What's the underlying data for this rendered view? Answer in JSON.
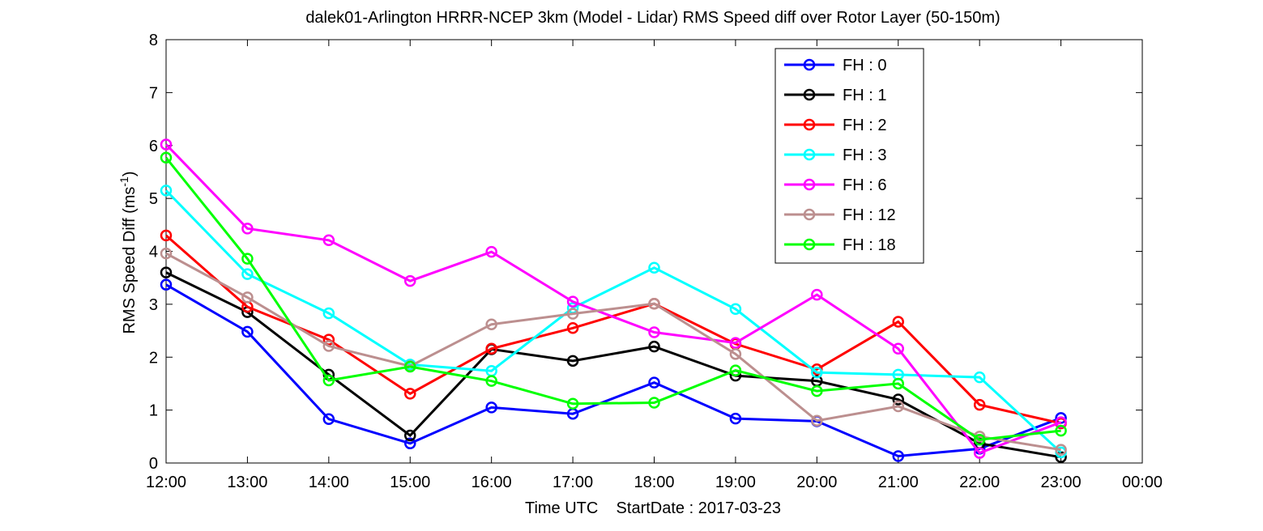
{
  "chart_data": {
    "type": "line",
    "title": "dalek01-Arlington HRRR-NCEP 3km (Model - Lidar) RMS Speed diff over Rotor Layer (50-150m)",
    "xlabel": "Time UTC    StartDate : 2017-03-23",
    "ylabel": "RMS Speed Diff (ms⁻¹)",
    "ylabel_main": "RMS Speed Diff (ms",
    "ylabel_sup": "-1",
    "ylabel_close": ")",
    "x_tick_labels": [
      "12:00",
      "13:00",
      "14:00",
      "15:00",
      "16:00",
      "17:00",
      "18:00",
      "19:00",
      "20:00",
      "21:00",
      "22:00",
      "23:00",
      "00:00"
    ],
    "y_tick_labels": [
      "0",
      "1",
      "2",
      "3",
      "4",
      "5",
      "6",
      "7",
      "8"
    ],
    "xlim": [
      "12:00",
      "00:00"
    ],
    "ylim": [
      0,
      8
    ],
    "grid": false,
    "legend_position": "top-right",
    "x": [
      "12:00",
      "13:00",
      "14:00",
      "15:00",
      "16:00",
      "17:00",
      "18:00",
      "19:00",
      "20:00",
      "21:00",
      "22:00",
      "23:00"
    ],
    "series": [
      {
        "name": "FH : 0",
        "color": "#0000ff",
        "values": [
          3.37,
          2.48,
          0.83,
          0.37,
          1.05,
          0.93,
          1.52,
          0.84,
          0.79,
          0.13,
          0.27,
          0.85
        ]
      },
      {
        "name": "FH : 1",
        "color": "#000000",
        "values": [
          3.6,
          2.85,
          1.67,
          0.52,
          2.15,
          1.93,
          2.2,
          1.65,
          1.55,
          1.2,
          0.37,
          0.11
        ]
      },
      {
        "name": "FH : 2",
        "color": "#ff0000",
        "values": [
          4.3,
          2.95,
          2.33,
          1.31,
          2.16,
          2.55,
          3.01,
          2.25,
          1.77,
          2.67,
          1.1,
          0.75
        ]
      },
      {
        "name": "FH : 3",
        "color": "#00ffff",
        "values": [
          5.15,
          3.57,
          2.83,
          1.86,
          1.74,
          2.93,
          3.69,
          2.91,
          1.71,
          1.67,
          1.62,
          0.2
        ]
      },
      {
        "name": "FH : 6",
        "color": "#ff00ff",
        "values": [
          6.02,
          4.43,
          4.21,
          3.44,
          3.99,
          3.05,
          2.47,
          2.27,
          3.18,
          2.16,
          0.19,
          0.77
        ]
      },
      {
        "name": "FH : 12",
        "color": "#bc8f8f",
        "values": [
          3.96,
          3.13,
          2.21,
          1.83,
          2.62,
          2.82,
          3.01,
          2.06,
          0.8,
          1.07,
          0.5,
          0.25
        ]
      },
      {
        "name": "FH : 18",
        "color": "#00ff00",
        "values": [
          5.77,
          3.86,
          1.56,
          1.82,
          1.55,
          1.12,
          1.14,
          1.75,
          1.36,
          1.5,
          0.44,
          0.61
        ]
      }
    ]
  }
}
